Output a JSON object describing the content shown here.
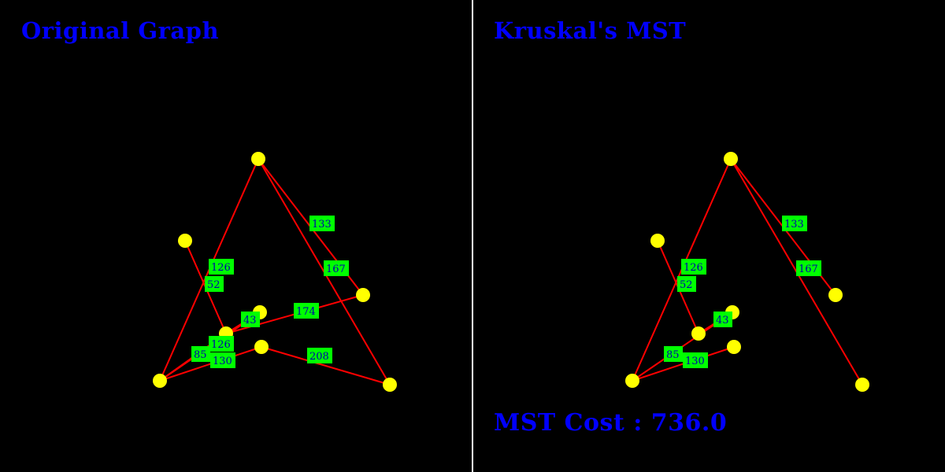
{
  "colors": {
    "background": "#000000",
    "divider": "#ffffff",
    "title": "#0000ff",
    "edge": "#ff0000",
    "node": "#ffff00",
    "label_bg": "#00ff00",
    "label_text": "#0000aa"
  },
  "original": {
    "title": "Original Graph",
    "edges": [
      {
        "from": 0,
        "to": 3,
        "weight": "126"
      },
      {
        "from": 0,
        "to": 2,
        "weight": "133"
      },
      {
        "from": 0,
        "to": 7,
        "weight": "167"
      },
      {
        "from": 1,
        "to": 4,
        "weight": "52"
      },
      {
        "from": 4,
        "to": 5,
        "weight": "43"
      },
      {
        "from": 4,
        "to": 2,
        "weight": "174"
      },
      {
        "from": 4,
        "to": 3,
        "weight": "126"
      },
      {
        "from": 3,
        "to": 6,
        "weight": "130"
      },
      {
        "from": 3,
        "to": 5,
        "weight": "85"
      },
      {
        "from": 6,
        "to": 7,
        "weight": "208"
      }
    ]
  },
  "mst": {
    "title": "Kruskal's MST",
    "cost_label": "MST Cost : ",
    "cost_value": "736.0",
    "edges": [
      {
        "from": 0,
        "to": 3,
        "weight": "126"
      },
      {
        "from": 0,
        "to": 2,
        "weight": "133"
      },
      {
        "from": 0,
        "to": 7,
        "weight": "167"
      },
      {
        "from": 1,
        "to": 4,
        "weight": "52"
      },
      {
        "from": 4,
        "to": 5,
        "weight": "43"
      },
      {
        "from": 3,
        "to": 6,
        "weight": "130"
      },
      {
        "from": 3,
        "to": 5,
        "weight": "85"
      }
    ]
  }
}
